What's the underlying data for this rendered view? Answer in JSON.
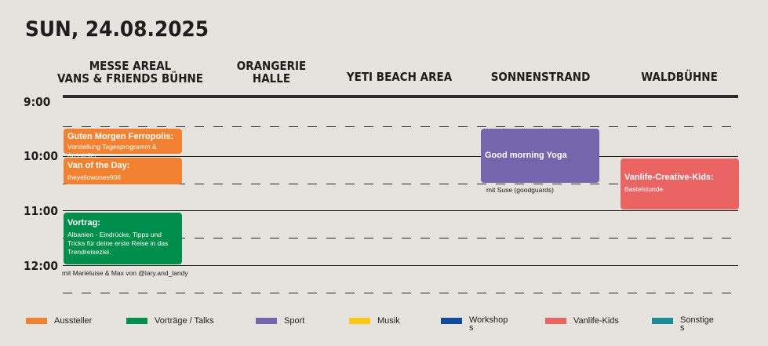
{
  "title": "SUN, 24.08.2025",
  "venues": [
    {
      "line1": "MESSE AREAL",
      "line2": "VANS & FRIENDS BÜHNE"
    },
    {
      "line1": "ORANGERIE",
      "line2": "HALLE"
    },
    {
      "line1": "YETI BEACH AREA",
      "line2": ""
    },
    {
      "line1": "SONNENSTRAND",
      "line2": ""
    },
    {
      "line1": "WALDBÜHNE",
      "line2": ""
    }
  ],
  "times": [
    "9:00",
    "10:00",
    "11:00",
    "12:00"
  ],
  "events": [
    {
      "title": "Guten Morgen Ferropolis:",
      "subtitle": "Vorstellung Tagesprogramm & Aussteller",
      "color": "#f28232"
    },
    {
      "title": "Van of the Day:",
      "subtitle": "theyellowones906",
      "color": "#f28232"
    },
    {
      "title": "Vortrag:",
      "subtitle": "Albanien - Eindrücke, Tipps und Tricks für deine erste Reise in das Trendreiseziel.",
      "color": "#008e4c"
    },
    {
      "title": "Good morning Yoga",
      "subtitle": "",
      "color": "#7466ad"
    },
    {
      "title": "Vanlife-Creative-Kids:",
      "subtitle": "Bastelstunde",
      "color": "#ea6464"
    }
  ],
  "notes": {
    "vortrag": "mit Marieluise & Max von @lary.and_landy",
    "yoga": "mit Suse (goodguards)"
  },
  "legend": [
    {
      "label": "Aussteller",
      "color": "#f28232"
    },
    {
      "label": "Vorträge / Talks",
      "color": "#008e4c"
    },
    {
      "label": "Sport",
      "color": "#7466ad"
    },
    {
      "label": "Musik",
      "color": "#fdc813"
    },
    {
      "label": "Workshop\ns",
      "color": "#0e4a9e"
    },
    {
      "label": "Vanlife-Kids",
      "color": "#ea6464"
    },
    {
      "label": "Sonstige\ns",
      "color": "#1e8c96"
    }
  ]
}
